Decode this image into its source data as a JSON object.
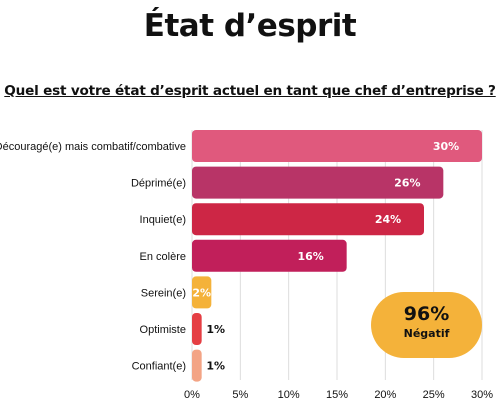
{
  "title": "État d’esprit",
  "subtitle": "Quel est votre état d’esprit actuel en tant que chef d’entreprise ?",
  "summary": {
    "value": "96%",
    "label": "Négatif",
    "color": "#f4b23a"
  },
  "chart_data": {
    "type": "bar",
    "orientation": "horizontal",
    "categories": [
      "Découragé(e) mais combatif/combative",
      "Déprimé(e)",
      "Inquiet(e)",
      "En colère",
      "Serein(e)",
      "Optimiste",
      "Confiant(e)"
    ],
    "values": [
      30,
      26,
      24,
      16,
      2,
      1,
      1
    ],
    "value_labels": [
      "30%",
      "26%",
      "24%",
      "16%",
      "2%",
      "1%",
      "1%"
    ],
    "colors": [
      "#e0597d",
      "#b83467",
      "#cd2645",
      "#c11f5a",
      "#f4b23a",
      "#e53e43",
      "#f3a485"
    ],
    "xlim": [
      0,
      30
    ],
    "xticks": [
      "0%",
      "5%",
      "10%",
      "15%",
      "20%",
      "25%",
      "30%"
    ],
    "grid": true
  }
}
